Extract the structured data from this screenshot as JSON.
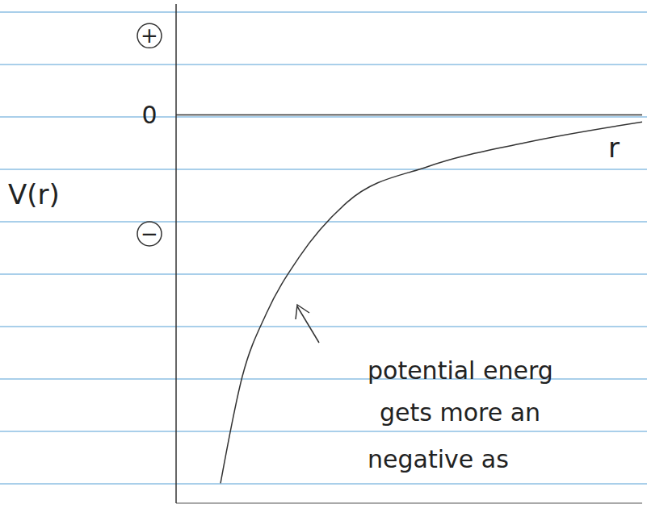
{
  "chart_data": {
    "type": "line",
    "x_label": "r",
    "y_label": "V(r)",
    "x": [
      0.55,
      0.82,
      1.12,
      1.52,
      2.12,
      3.12,
      4.32,
      5.82
    ],
    "values": [
      -4.65,
      -3.3,
      -2.5,
      -1.8,
      -1.1,
      -0.65,
      -0.35,
      -0.08
    ],
    "xlim": [
      0,
      5.77
    ],
    "ylim": [
      -4.9,
      1.4
    ],
    "yticks": [
      {
        "value": 1,
        "label": "+"
      },
      0,
      {
        "value": -1.5,
        "label": "−"
      }
    ],
    "tick_labels": "y",
    "color": "#333333",
    "annotation": [
      "potential energ",
      "gets more an",
      "negative as"
    ]
  }
}
